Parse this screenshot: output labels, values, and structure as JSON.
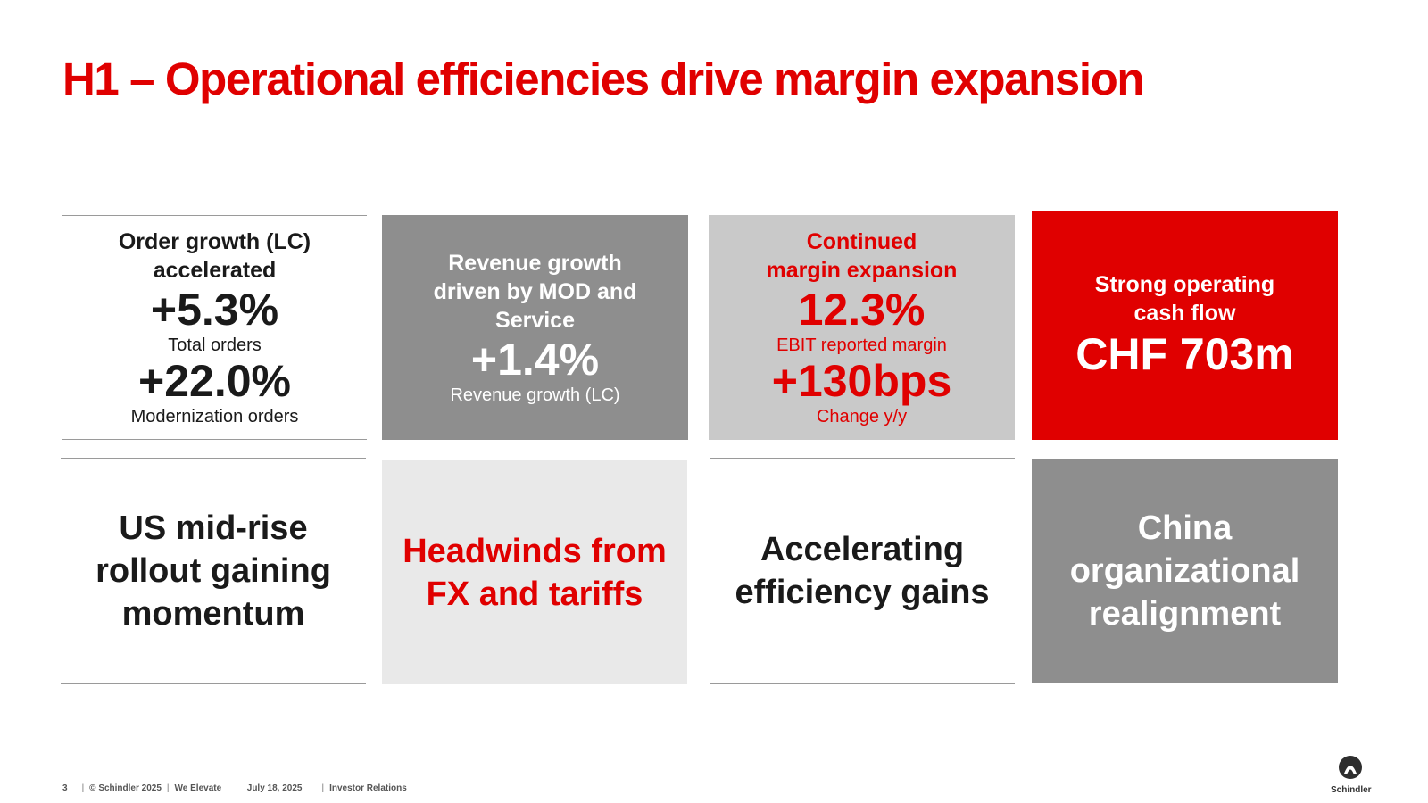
{
  "title": "H1 – Operational efficiencies drive margin expansion",
  "tiles": {
    "orders": {
      "heading_line1": "Order growth (LC)",
      "heading_line2": "accelerated",
      "value1": "+5.3%",
      "label1": "Total orders",
      "value2": "+22.0%",
      "label2": "Modernization orders"
    },
    "revenue": {
      "heading_line1": "Revenue growth",
      "heading_line2": "driven by MOD and",
      "heading_line3": "Service",
      "value": "+1.4%",
      "label": "Revenue growth (LC)"
    },
    "margin": {
      "heading_line1": "Continued",
      "heading_line2": "margin expansion",
      "value1": "12.3%",
      "label1": "EBIT reported margin",
      "value2": "+130bps",
      "label2": "Change y/y"
    },
    "cashflow": {
      "heading_line1": "Strong operating",
      "heading_line2": "cash flow",
      "value": "CHF 703m"
    },
    "us": {
      "line1": "US mid-rise",
      "line2": "rollout gaining",
      "line3": "momentum"
    },
    "headwinds": {
      "line1": "Headwinds from",
      "line2": "FX and tariffs"
    },
    "efficiency": {
      "line1": "Accelerating",
      "line2": "efficiency gains"
    },
    "china": {
      "line1": "China",
      "line2": "organizational",
      "line3": "realignment"
    }
  },
  "footer": {
    "page": "3",
    "copyright": "© Schindler 2025",
    "tagline": "We Elevate",
    "date": "July 18, 2025",
    "department": "Investor Relations"
  },
  "logo": {
    "label": "Schindler",
    "icon": "schindler-logo-icon"
  },
  "colors": {
    "accent_red": "#e00000",
    "dark_gray": "#8e8e8e",
    "mid_gray": "#c9c9c9",
    "light_gray": "#e9e9e9"
  }
}
